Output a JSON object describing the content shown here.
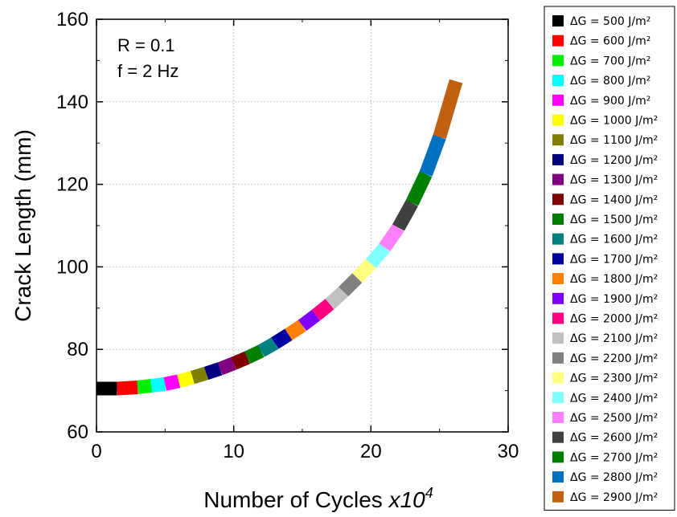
{
  "chart_data": {
    "type": "scatter",
    "title": "",
    "xlabel": "Number of Cycles ",
    "xlabel_suffix": "x10",
    "xlabel_exponent": "4",
    "ylabel": "Crack Length (mm)",
    "xlim": [
      0,
      30
    ],
    "ylim": [
      60,
      160
    ],
    "x_ticks": [
      0,
      10,
      20,
      30
    ],
    "y_ticks": [
      60,
      80,
      100,
      120,
      140,
      160
    ],
    "grid": true,
    "legend_position": "outside-right",
    "annotations": [
      "R = 0.1",
      "f = 2 Hz"
    ],
    "series": [
      {
        "name": "ΔG = 500 J/m²",
        "color": "#000000",
        "x": [
          0.0,
          1.5
        ],
        "y": [
          70.5,
          70.5
        ]
      },
      {
        "name": "ΔG = 600 J/m²",
        "color": "#ff0000",
        "x": [
          1.5,
          3.0
        ],
        "y": [
          70.5,
          70.8
        ]
      },
      {
        "name": "ΔG = 700 J/m²",
        "color": "#00ee00",
        "x": [
          3.0,
          4.0
        ],
        "y": [
          70.8,
          71.2
        ]
      },
      {
        "name": "ΔG = 800 J/m²",
        "color": "#00ffff",
        "x": [
          4.0,
          5.0
        ],
        "y": [
          71.2,
          71.6
        ]
      },
      {
        "name": "ΔG = 900 J/m²",
        "color": "#ff00ff",
        "x": [
          5.0,
          6.0
        ],
        "y": [
          71.6,
          72.3
        ]
      },
      {
        "name": "ΔG = 1000 J/m²",
        "color": "#ffff00",
        "x": [
          6.0,
          7.0
        ],
        "y": [
          72.3,
          73.2
        ]
      },
      {
        "name": "ΔG = 1100 J/m²",
        "color": "#808000",
        "x": [
          7.0,
          8.0
        ],
        "y": [
          73.2,
          74.2
        ]
      },
      {
        "name": "ΔG = 1200 J/m²",
        "color": "#000080",
        "x": [
          8.0,
          9.0
        ],
        "y": [
          74.2,
          75.3
        ]
      },
      {
        "name": "ΔG = 1300 J/m²",
        "color": "#800080",
        "x": [
          9.0,
          10.0
        ],
        "y": [
          75.3,
          76.6
        ]
      },
      {
        "name": "ΔG = 1400 J/m²",
        "color": "#800000",
        "x": [
          10.0,
          11.0
        ],
        "y": [
          76.6,
          78.0
        ]
      },
      {
        "name": "ΔG = 1500 J/m²",
        "color": "#008000",
        "x": [
          11.0,
          12.0
        ],
        "y": [
          78.0,
          79.6
        ]
      },
      {
        "name": "ΔG = 1600 J/m²",
        "color": "#008080",
        "x": [
          12.0,
          13.0
        ],
        "y": [
          79.6,
          81.5
        ]
      },
      {
        "name": "ΔG = 1700 J/m²",
        "color": "#0000a0",
        "x": [
          13.0,
          14.0
        ],
        "y": [
          81.5,
          83.6
        ]
      },
      {
        "name": "ΔG = 1800 J/m²",
        "color": "#ff8000",
        "x": [
          14.0,
          15.0
        ],
        "y": [
          83.6,
          85.8
        ]
      },
      {
        "name": "ΔG = 1900 J/m²",
        "color": "#8000ff",
        "x": [
          15.0,
          16.0
        ],
        "y": [
          85.8,
          88.3
        ]
      },
      {
        "name": "ΔG = 2000 J/m²",
        "color": "#ff0080",
        "x": [
          16.0,
          17.0
        ],
        "y": [
          88.3,
          91.0
        ]
      },
      {
        "name": "ΔG = 2100 J/m²",
        "color": "#c0c0c0",
        "x": [
          17.0,
          18.0
        ],
        "y": [
          91.0,
          94.0
        ]
      },
      {
        "name": "ΔG = 2200 J/m²",
        "color": "#808080",
        "x": [
          18.0,
          19.0
        ],
        "y": [
          94.0,
          97.3
        ]
      },
      {
        "name": "ΔG = 2300 J/m²",
        "color": "#ffff80",
        "x": [
          19.0,
          20.0
        ],
        "y": [
          97.3,
          100.8
        ]
      },
      {
        "name": "ΔG = 2400 J/m²",
        "color": "#80ffff",
        "x": [
          20.0,
          21.0
        ],
        "y": [
          100.8,
          104.7
        ]
      },
      {
        "name": "ΔG = 2500 J/m²",
        "color": "#ff80ff",
        "x": [
          21.0,
          22.0
        ],
        "y": [
          104.7,
          109.5
        ]
      },
      {
        "name": "ΔG = 2600 J/m²",
        "color": "#404040",
        "x": [
          22.0,
          23.0
        ],
        "y": [
          109.5,
          115.5
        ]
      },
      {
        "name": "ΔG = 2700 J/m²",
        "color": "#008000",
        "x": [
          23.0,
          24.0
        ],
        "y": [
          115.5,
          122.5
        ]
      },
      {
        "name": "ΔG = 2800 J/m²",
        "color": "#0070c0",
        "x": [
          24.0,
          25.0
        ],
        "y": [
          122.5,
          131.5
        ]
      },
      {
        "name": "ΔG = 2900 J/m²",
        "color": "#c06010",
        "x": [
          25.0,
          26.2
        ],
        "y": [
          131.5,
          145.0
        ]
      }
    ]
  }
}
